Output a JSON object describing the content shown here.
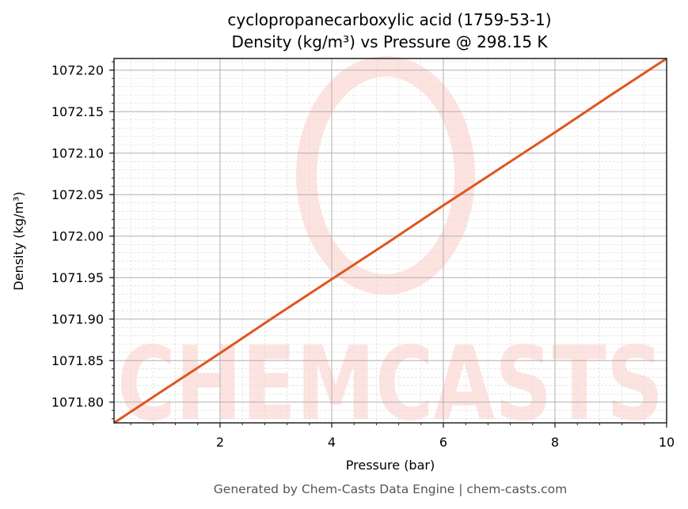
{
  "chart_data": {
    "type": "line",
    "title": "cyclopropanecarboxylic acid (1759-53-1)",
    "subtitle": "Density (kg/m³) vs Pressure @ 298.15 K",
    "xlabel": "Pressure (bar)",
    "ylabel": "Density (kg/m³)",
    "xlim": [
      0.1,
      10
    ],
    "ylim": [
      1071.775,
      1072.214
    ],
    "x_ticks": [
      2,
      4,
      6,
      8,
      10
    ],
    "x_tick_labels": [
      "2",
      "4",
      "6",
      "8",
      "10"
    ],
    "y_ticks": [
      1071.8,
      1071.85,
      1071.9,
      1071.95,
      1072.0,
      1072.05,
      1072.1,
      1072.15,
      1072.2
    ],
    "y_tick_labels": [
      "1071.80",
      "1071.85",
      "1071.90",
      "1071.95",
      "1072.00",
      "1072.05",
      "1072.10",
      "1072.15",
      "1072.20"
    ],
    "grid": true,
    "minor_grid": true,
    "legend": null,
    "series": [
      {
        "name": "Density",
        "color": "#E05520",
        "x": [
          0.1,
          1,
          2,
          3,
          4,
          5,
          6,
          7,
          8,
          9,
          10
        ],
        "y": [
          1071.775,
          1071.815,
          1071.859,
          1071.904,
          1071.948,
          1071.992,
          1072.037,
          1072.081,
          1072.125,
          1072.17,
          1072.214
        ]
      }
    ]
  },
  "watermark": {
    "text": "CHEMCASTS",
    "color": "#FDE3E0"
  },
  "footer": {
    "text": "Generated by Chem-Casts Data Engine | chem-casts.com"
  }
}
